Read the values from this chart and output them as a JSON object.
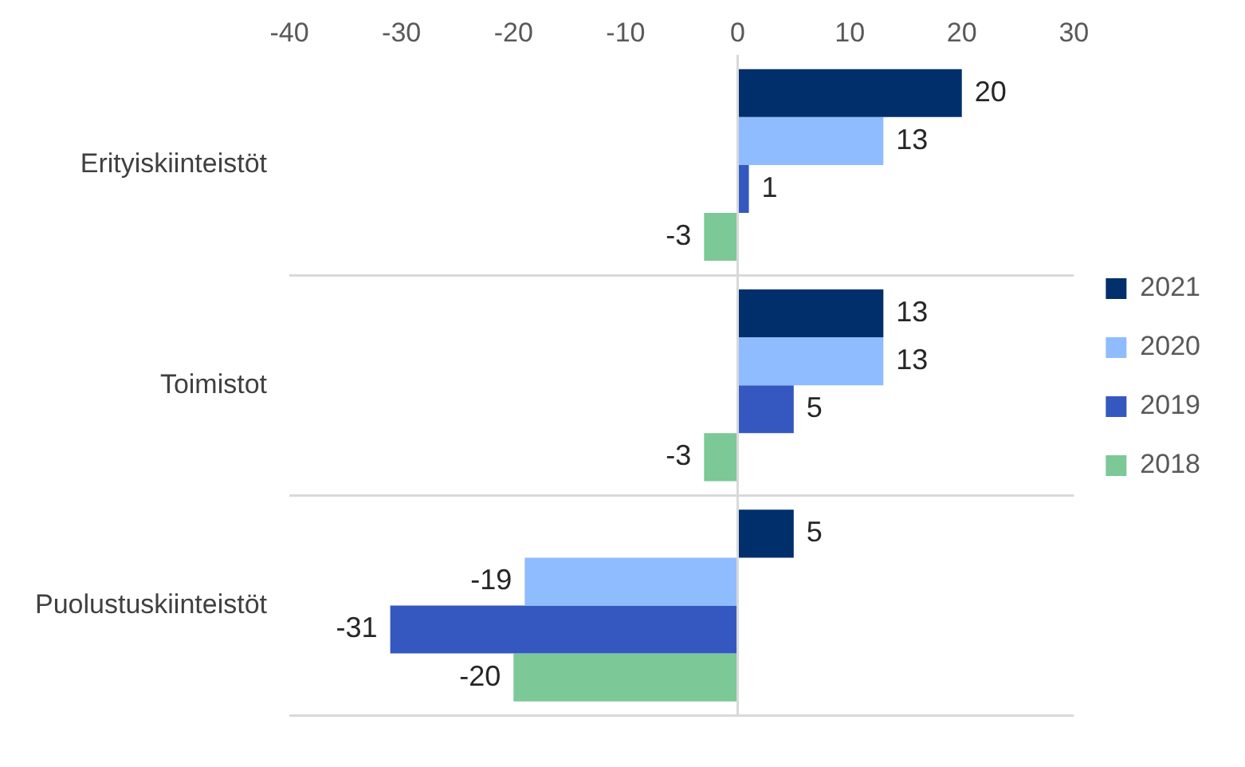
{
  "chart_data": {
    "type": "bar",
    "orientation": "horizontal",
    "categories": [
      "Erityiskiinteistöt",
      "Toimistot",
      "Puolustuskiinteistöt"
    ],
    "series": [
      {
        "name": "2021",
        "color": "#002f6c",
        "values": [
          20,
          13,
          5
        ]
      },
      {
        "name": "2020",
        "color": "#8fbcff",
        "values": [
          13,
          13,
          -19
        ]
      },
      {
        "name": "2019",
        "color": "#3558c0",
        "values": [
          1,
          5,
          -31
        ]
      },
      {
        "name": "2018",
        "color": "#7cc896",
        "values": [
          -3,
          -3,
          -20
        ]
      }
    ],
    "xlim": [
      -40,
      30
    ],
    "xticks": [
      -40,
      -30,
      -20,
      -10,
      0,
      10,
      20,
      30
    ],
    "grid": "y",
    "ref_lines": [
      {
        "axis": "x",
        "value": 0,
        "color": "#d9d9d9"
      }
    ],
    "legend": "right",
    "data_labels": true
  }
}
